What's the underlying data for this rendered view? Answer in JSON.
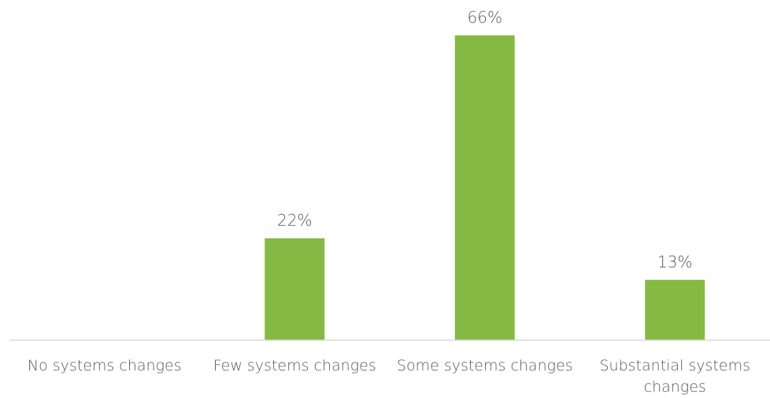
{
  "chart_data": {
    "type": "bar",
    "title": "",
    "xlabel": "",
    "ylabel": "",
    "categories": [
      "No systems changes",
      "Few systems changes",
      "Some systems changes",
      "Substantial systems changes"
    ],
    "category_label_lines": [
      [
        "No systems changes"
      ],
      [
        "Few systems changes"
      ],
      [
        "Some systems changes"
      ],
      [
        "Substantial systems",
        "changes"
      ]
    ],
    "values": [
      0,
      22,
      66,
      13
    ],
    "data_labels": [
      "",
      "22%",
      "66%",
      "13%"
    ],
    "value_unit": "%",
    "ylim": [
      0,
      66
    ],
    "bar_color": "#86b943",
    "axis_color": "#d9d9d9",
    "text_color": "#595959",
    "grid": false,
    "legend": "none"
  }
}
